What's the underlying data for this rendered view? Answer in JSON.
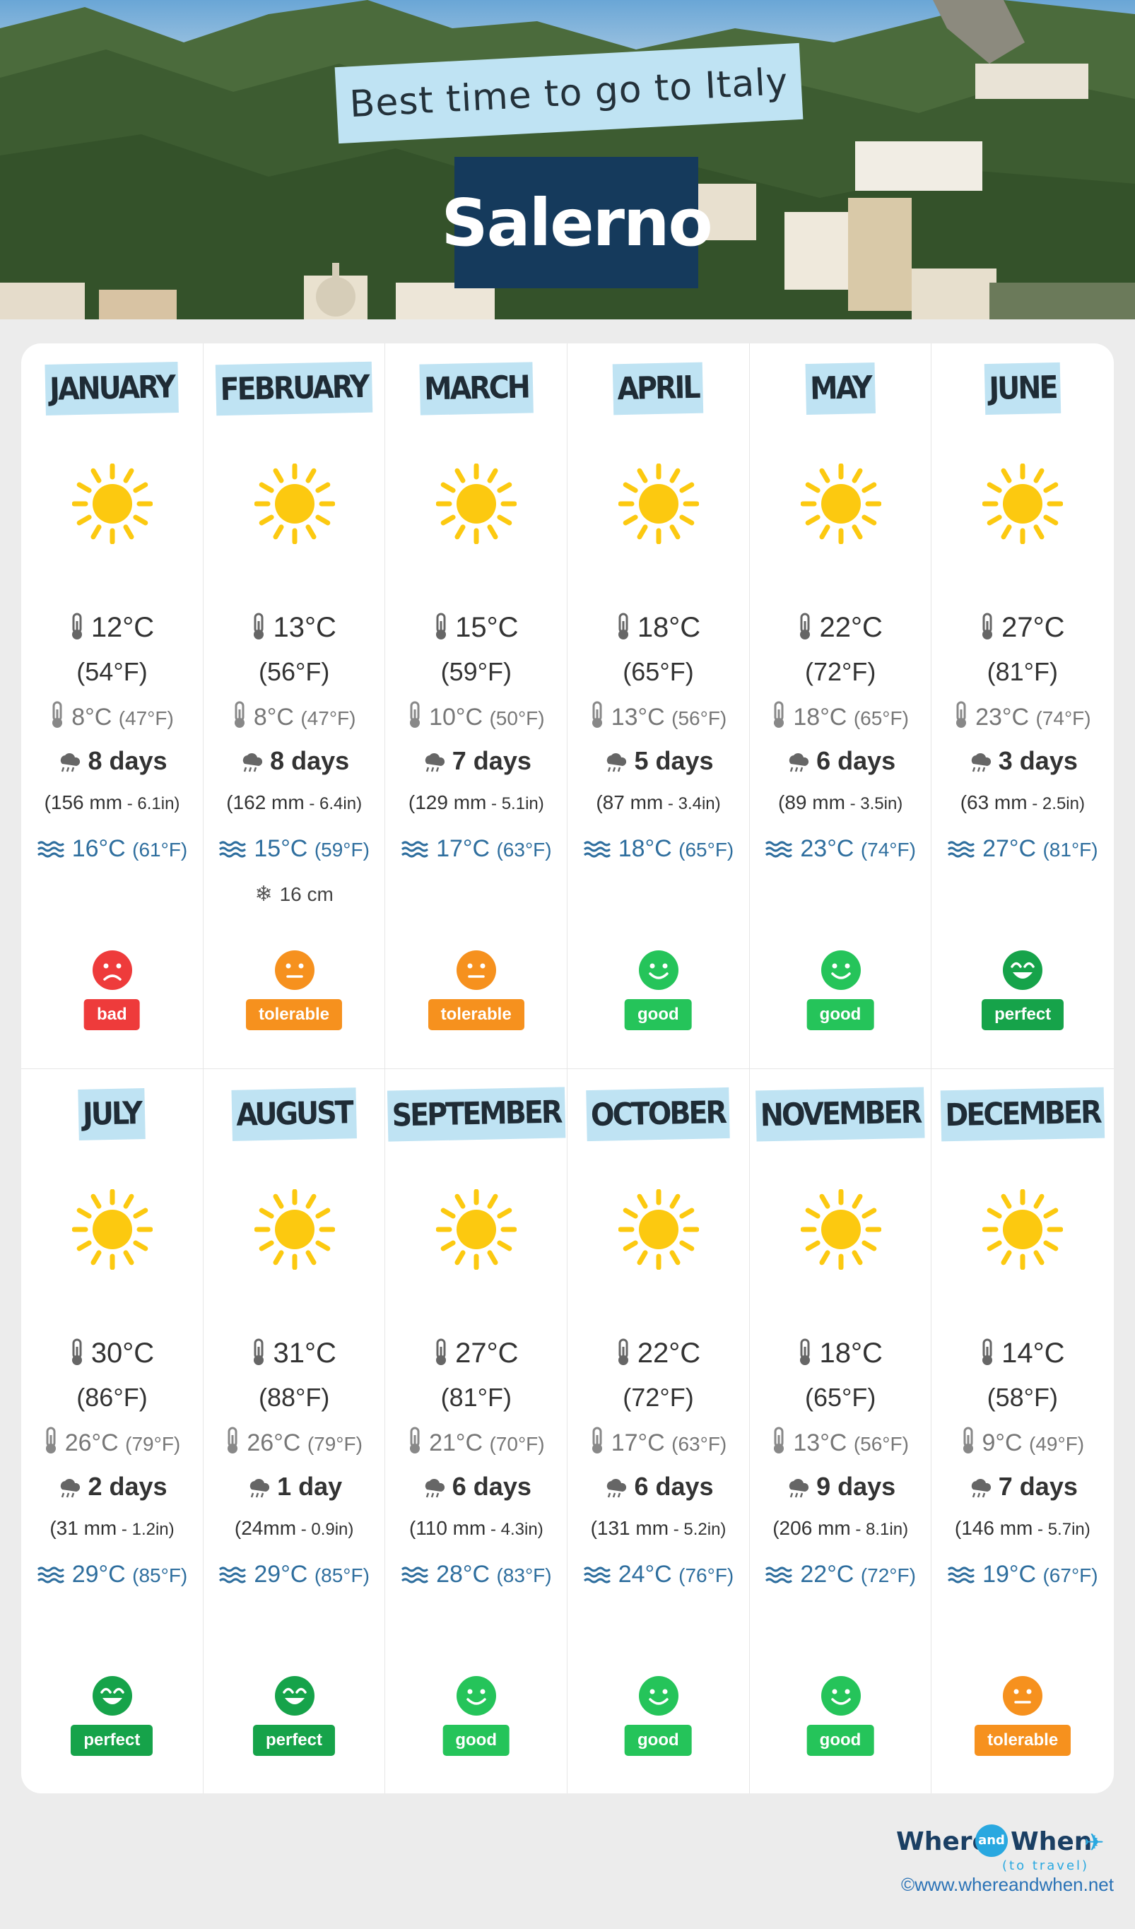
{
  "header": {
    "tagline": "Best time to go to Italy",
    "city": "Salerno"
  },
  "colors": {
    "bad": "#ee3b3b",
    "tolerable": "#f6911e",
    "good": "#25c45a",
    "perfect": "#16a34a",
    "sun": "#fcc910",
    "month_tag": "#bfe3f3",
    "sea_text": "#2e6e9e"
  },
  "months": [
    {
      "name": "JANUARY",
      "icon": "sun-icon",
      "hi_c": "12°C",
      "hi_f": "(54°F)",
      "lo_c": "8°C",
      "lo_f": "(47°F)",
      "rain_days": "8 days",
      "rain_mm": "(156 mm",
      "rain_in": " - 6.1in)",
      "sea_c": "16°C",
      "sea_f": "(61°F)",
      "snow": "",
      "rating": "bad",
      "face": "sad"
    },
    {
      "name": "FEBRUARY",
      "icon": "sun-icon",
      "hi_c": "13°C",
      "hi_f": "(56°F)",
      "lo_c": "8°C",
      "lo_f": "(47°F)",
      "rain_days": "8 days",
      "rain_mm": "(162 mm",
      "rain_in": " - 6.4in)",
      "sea_c": "15°C",
      "sea_f": "(59°F)",
      "snow": "16 cm",
      "rating": "tolerable",
      "face": "neutral"
    },
    {
      "name": "MARCH",
      "icon": "sun-icon",
      "hi_c": "15°C",
      "hi_f": "(59°F)",
      "lo_c": "10°C",
      "lo_f": "(50°F)",
      "rain_days": "7 days",
      "rain_mm": "(129 mm",
      "rain_in": " - 5.1in)",
      "sea_c": "17°C",
      "sea_f": "(63°F)",
      "snow": "",
      "rating": "tolerable",
      "face": "neutral"
    },
    {
      "name": "APRIL",
      "icon": "sun-icon",
      "hi_c": "18°C",
      "hi_f": "(65°F)",
      "lo_c": "13°C",
      "lo_f": "(56°F)",
      "rain_days": "5 days",
      "rain_mm": "(87 mm",
      "rain_in": " - 3.4in)",
      "sea_c": "18°C",
      "sea_f": "(65°F)",
      "snow": "",
      "rating": "good",
      "face": "smile"
    },
    {
      "name": "MAY",
      "icon": "sun-icon",
      "hi_c": "22°C",
      "hi_f": "(72°F)",
      "lo_c": "18°C",
      "lo_f": "(65°F)",
      "rain_days": "6 days",
      "rain_mm": "(89 mm",
      "rain_in": " - 3.5in)",
      "sea_c": "23°C",
      "sea_f": "(74°F)",
      "snow": "",
      "rating": "good",
      "face": "smile"
    },
    {
      "name": "JUNE",
      "icon": "sun-icon",
      "hi_c": "27°C",
      "hi_f": "(81°F)",
      "lo_c": "23°C",
      "lo_f": "(74°F)",
      "rain_days": "3 days",
      "rain_mm": "(63 mm",
      "rain_in": " - 2.5in)",
      "sea_c": "27°C",
      "sea_f": "(81°F)",
      "snow": "",
      "rating": "perfect",
      "face": "love"
    },
    {
      "name": "JULY",
      "icon": "sun-icon",
      "hi_c": "30°C",
      "hi_f": "(86°F)",
      "lo_c": "26°C",
      "lo_f": "(79°F)",
      "rain_days": "2 days",
      "rain_mm": "(31 mm",
      "rain_in": " - 1.2in)",
      "sea_c": "29°C",
      "sea_f": "(85°F)",
      "snow": "",
      "rating": "perfect",
      "face": "love"
    },
    {
      "name": "AUGUST",
      "icon": "sun-icon",
      "hi_c": "31°C",
      "hi_f": "(88°F)",
      "lo_c": "26°C",
      "lo_f": "(79°F)",
      "rain_days": "1 day",
      "rain_mm": "(24mm",
      "rain_in": " - 0.9in)",
      "sea_c": "29°C",
      "sea_f": "(85°F)",
      "snow": "",
      "rating": "perfect",
      "face": "love"
    },
    {
      "name": "SEPTEMBER",
      "icon": "sun-icon",
      "hi_c": "27°C",
      "hi_f": "(81°F)",
      "lo_c": "21°C",
      "lo_f": "(70°F)",
      "rain_days": "6 days",
      "rain_mm": "(110 mm",
      "rain_in": " - 4.3in)",
      "sea_c": "28°C",
      "sea_f": "(83°F)",
      "snow": "",
      "rating": "good",
      "face": "smile"
    },
    {
      "name": "OCTOBER",
      "icon": "sun-icon",
      "hi_c": "22°C",
      "hi_f": "(72°F)",
      "lo_c": "17°C",
      "lo_f": "(63°F)",
      "rain_days": "6 days",
      "rain_mm": "(131 mm",
      "rain_in": " - 5.2in)",
      "sea_c": "24°C",
      "sea_f": "(76°F)",
      "snow": "",
      "rating": "good",
      "face": "smile"
    },
    {
      "name": "NOVEMBER",
      "icon": "sun-icon",
      "hi_c": "18°C",
      "hi_f": "(65°F)",
      "lo_c": "13°C",
      "lo_f": "(56°F)",
      "rain_days": "9 days",
      "rain_mm": "(206 mm",
      "rain_in": " - 8.1in)",
      "sea_c": "22°C",
      "sea_f": "(72°F)",
      "snow": "",
      "rating": "good",
      "face": "smile"
    },
    {
      "name": "DECEMBER",
      "icon": "sun-icon",
      "hi_c": "14°C",
      "hi_f": "(58°F)",
      "lo_c": "9°C",
      "lo_f": "(49°F)",
      "rain_days": "7 days",
      "rain_mm": "(146 mm",
      "rain_in": " - 5.7in)",
      "sea_c": "19°C",
      "sea_f": "(67°F)",
      "snow": "",
      "rating": "tolerable",
      "face": "neutral"
    }
  ],
  "footer": {
    "brand_left": "Where",
    "brand_and": "and",
    "brand_right": "When",
    "brand_sub": "(to travel)",
    "copyright": "©www.whereandwhen.net"
  }
}
